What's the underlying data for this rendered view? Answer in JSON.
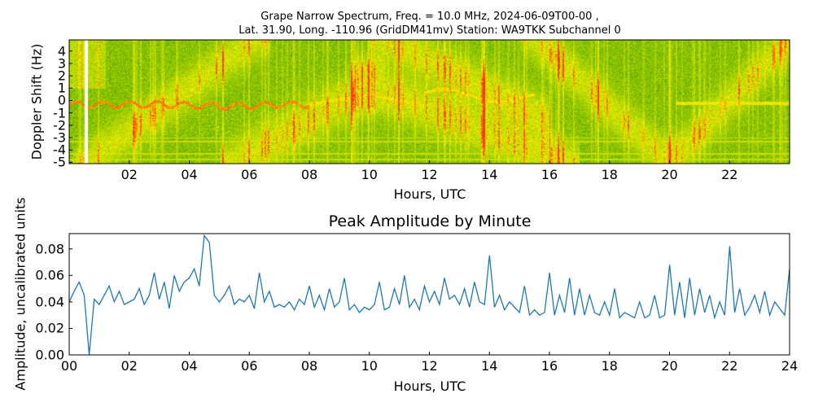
{
  "chart_data": [
    {
      "type": "heatmap",
      "title_line1": "Grape Narrow Spectrum, Freq. = 10.0 MHz, 2024-06-09T00-00 ,",
      "title_line2": "Lat.  31.90, Long. -110.96 (GridDM41mv) Station: WA9TKK Subchannel 0",
      "xlabel": "Hours, UTC",
      "ylabel": "Doppler Shift (Hz)",
      "xlim": [
        0,
        24
      ],
      "ylim": [
        -5.1,
        4.9
      ],
      "xticks": [
        "02",
        "04",
        "06",
        "08",
        "10",
        "12",
        "14",
        "16",
        "18",
        "20",
        "22"
      ],
      "xtick_values": [
        2,
        4,
        6,
        8,
        10,
        12,
        14,
        16,
        18,
        20,
        22
      ],
      "yticks": [
        "4",
        "3",
        "2",
        "1",
        "0",
        "-1",
        "-2",
        "-3",
        "-4",
        "-5"
      ],
      "ytick_values": [
        4,
        3,
        2,
        1,
        0,
        -1,
        -2,
        -3,
        -4,
        -5
      ],
      "colormap": [
        "#0a7d00",
        "#9ccc00",
        "#f2f200",
        "#ff3300"
      ],
      "gap_hours": [
        0.5,
        0.6
      ],
      "grid": false
    },
    {
      "type": "line",
      "title": "Peak Amplitude by Minute",
      "xlabel": "Hours, UTC",
      "ylabel": "Amplitude, uncalibrated units",
      "xlim": [
        0,
        24
      ],
      "ylim": [
        0,
        0.0915
      ],
      "xticks": [
        "00",
        "02",
        "04",
        "06",
        "08",
        "10",
        "12",
        "14",
        "16",
        "18",
        "20",
        "22",
        "24"
      ],
      "xtick_values": [
        0,
        2,
        4,
        6,
        8,
        10,
        12,
        14,
        16,
        18,
        20,
        22,
        24
      ],
      "yticks": [
        "0.00",
        "0.02",
        "0.04",
        "0.06",
        "0.08"
      ],
      "ytick_values": [
        0,
        0.02,
        0.04,
        0.06,
        0.08
      ],
      "line_color": "#1f77b4",
      "grid": false,
      "x_step_hours": 0.1667,
      "values": [
        0.04,
        0.048,
        0.055,
        0.045,
        0.0,
        0.042,
        0.038,
        0.045,
        0.052,
        0.04,
        0.048,
        0.038,
        0.04,
        0.042,
        0.05,
        0.038,
        0.045,
        0.062,
        0.042,
        0.055,
        0.035,
        0.06,
        0.048,
        0.055,
        0.058,
        0.065,
        0.052,
        0.09,
        0.085,
        0.045,
        0.04,
        0.045,
        0.052,
        0.038,
        0.042,
        0.04,
        0.045,
        0.035,
        0.062,
        0.04,
        0.048,
        0.036,
        0.038,
        0.036,
        0.04,
        0.034,
        0.042,
        0.038,
        0.052,
        0.036,
        0.045,
        0.034,
        0.05,
        0.036,
        0.04,
        0.058,
        0.034,
        0.038,
        0.032,
        0.036,
        0.034,
        0.038,
        0.055,
        0.034,
        0.036,
        0.05,
        0.038,
        0.06,
        0.036,
        0.042,
        0.034,
        0.052,
        0.04,
        0.048,
        0.038,
        0.058,
        0.042,
        0.045,
        0.038,
        0.05,
        0.036,
        0.055,
        0.04,
        0.038,
        0.075,
        0.036,
        0.045,
        0.034,
        0.04,
        0.036,
        0.032,
        0.052,
        0.03,
        0.034,
        0.03,
        0.032,
        0.062,
        0.03,
        0.045,
        0.032,
        0.058,
        0.03,
        0.05,
        0.03,
        0.045,
        0.032,
        0.03,
        0.04,
        0.03,
        0.05,
        0.028,
        0.032,
        0.03,
        0.028,
        0.04,
        0.028,
        0.03,
        0.045,
        0.028,
        0.03,
        0.068,
        0.03,
        0.055,
        0.028,
        0.058,
        0.03,
        0.05,
        0.032,
        0.045,
        0.028,
        0.04,
        0.03,
        0.082,
        0.032,
        0.05,
        0.03,
        0.036,
        0.045,
        0.032,
        0.048,
        0.03,
        0.04,
        0.035,
        0.03,
        0.065
      ]
    }
  ]
}
